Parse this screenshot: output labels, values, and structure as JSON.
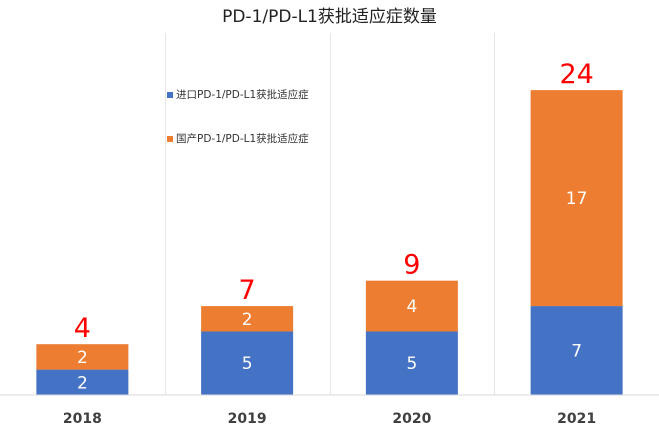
{
  "chart_data": {
    "type": "bar",
    "stacked": true,
    "title": "PD-1/PD-L1获批适应症数量",
    "categories": [
      "2018",
      "2019",
      "2020",
      "2021"
    ],
    "series": [
      {
        "name": "进口PD-1/PD-L1获批适应症",
        "color": "#4472C4",
        "values": [
          2,
          5,
          5,
          7
        ]
      },
      {
        "name": "国产PD-1/PD-L1获批适应症",
        "color": "#ED7D31",
        "values": [
          2,
          2,
          4,
          17
        ]
      }
    ],
    "totals": [
      "4",
      "7",
      "9",
      "24"
    ],
    "segment_labels": [
      [
        "2",
        "5",
        "5",
        "7"
      ],
      [
        "2",
        "2",
        "4",
        "17"
      ]
    ],
    "total_label_color": "#FF0000",
    "ylim": [
      0,
      27
    ],
    "legend_position": "top-left",
    "grid": false
  }
}
